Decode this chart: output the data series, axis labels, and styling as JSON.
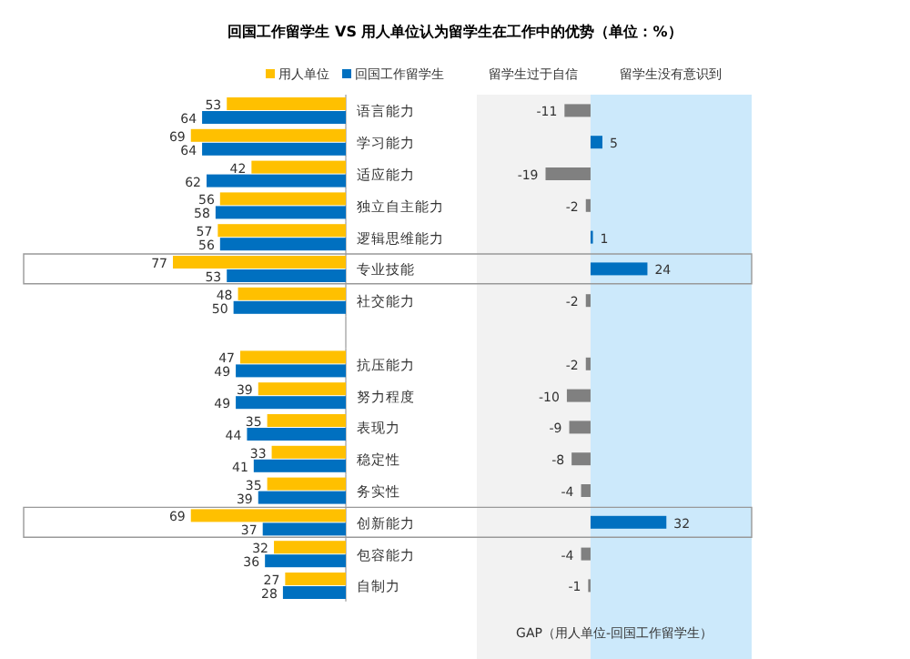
{
  "chart_data": [
    {
      "type": "bar",
      "orientation": "horizontal",
      "title": "回国工作留学生 VS 用人单位认为留学生在工作中的优势（单位：%）",
      "categories": [
        "语言能力",
        "学习能力",
        "适应能力",
        "独立自主能力",
        "逻辑思维能力",
        "专业技能",
        "社交能力",
        null,
        "抗压能力",
        "努力程度",
        "表现力",
        "稳定性",
        "务实性",
        "创新能力",
        "包容能力",
        "自制力"
      ],
      "legend": "top",
      "data_labels": true,
      "series": [
        {
          "name": "用人单位",
          "color": "#ffc000",
          "values": [
            53,
            69,
            42,
            56,
            57,
            77,
            48,
            null,
            47,
            39,
            35,
            33,
            35,
            69,
            32,
            27
          ]
        },
        {
          "name": "回国工作留学生",
          "color": "#0070c0",
          "values": [
            64,
            64,
            62,
            58,
            56,
            53,
            50,
            null,
            49,
            49,
            44,
            41,
            39,
            37,
            36,
            28
          ]
        }
      ]
    },
    {
      "type": "bar",
      "orientation": "horizontal",
      "categories": [
        null,
        null,
        null,
        null,
        null,
        null,
        null,
        null,
        null,
        null,
        null,
        null,
        null,
        null,
        null,
        null
      ],
      "data_labels": true,
      "xlabel": "GAP（用人单位-回国工作留学生）",
      "values": [
        -11,
        5,
        -19,
        -2,
        1,
        24,
        -2,
        null,
        -2,
        -10,
        -9,
        -8,
        -4,
        32,
        -4,
        -1
      ],
      "colors": [
        "#808080",
        "#0070c0",
        "#808080",
        "#808080",
        "#0070c0",
        "#0070c0",
        "#808080",
        null,
        "#808080",
        "#808080",
        "#808080",
        "#808080",
        "#808080",
        "#0070c0",
        "#808080",
        "#808080"
      ],
      "bands": [
        {
          "axis": "x",
          "from": -48,
          "to": 0,
          "label": "留学生过于自信",
          "color": "#f2f2f2"
        },
        {
          "axis": "x",
          "from": 0,
          "to": 68,
          "label": "留学生没有意识到",
          "color": "#cce9fb"
        }
      ]
    }
  ]
}
